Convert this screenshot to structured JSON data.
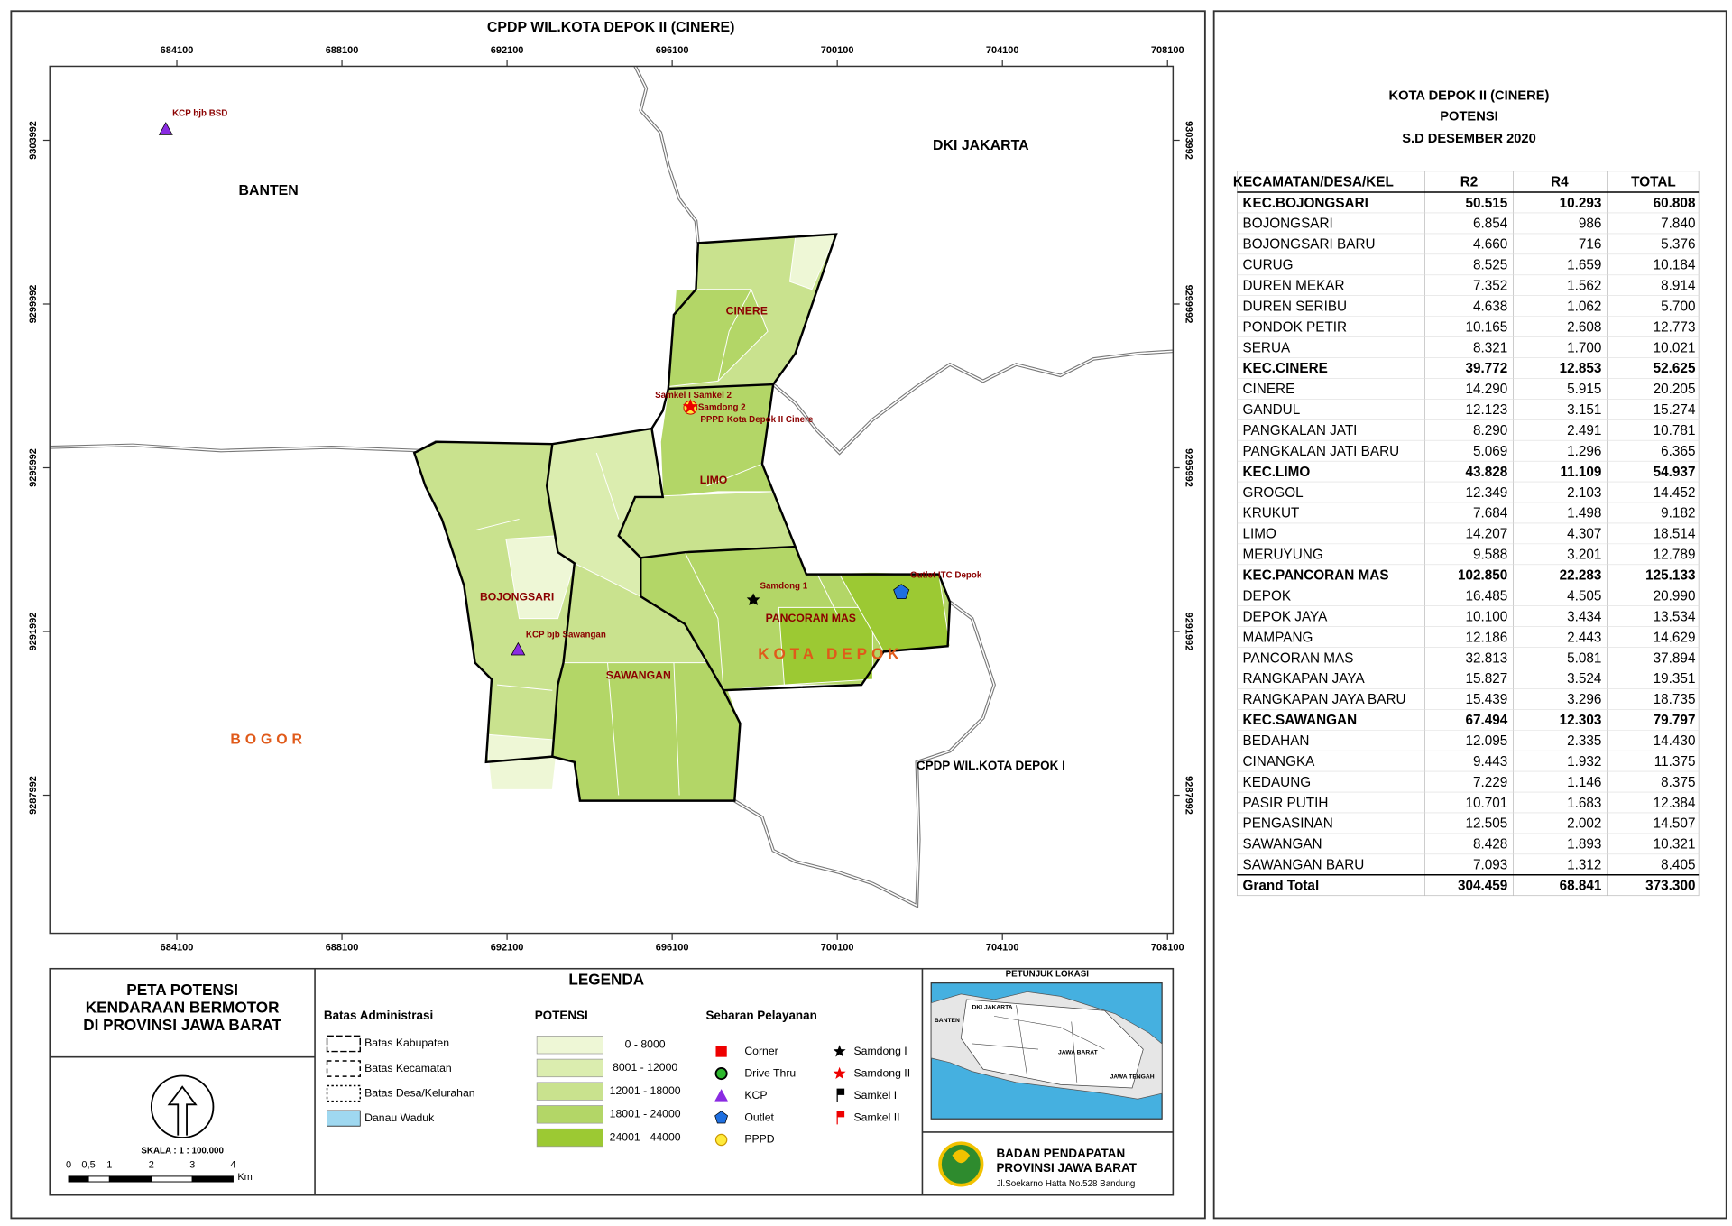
{
  "map": {
    "title": "CPDP WIL.KOTA DEPOK II (CINERE)",
    "x_ticks": [
      684100,
      688100,
      692100,
      696100,
      700100,
      704100,
      708100
    ],
    "y_ticks": [
      9303992,
      9299992,
      9295992,
      9291992,
      9287992
    ],
    "regions": [
      "BANTEN",
      "DKI JAKARTA",
      "BOGOR",
      "CPDP WIL.KOTA DEPOK I",
      "KOTA DEPOK"
    ],
    "districts": [
      "CINERE",
      "LIMO",
      "BOJONGSARI",
      "SAWANGAN",
      "PANCORAN MAS"
    ],
    "services": [
      "KCP bjb BSD",
      "KCP bjb Sawangan",
      "Outlet ITC Depok",
      "Samdong 1",
      "Samkel I Samkel 2",
      "Samdong 2",
      "PPPD Kota Depok II Cinere"
    ]
  },
  "map_title": [
    "PETA POTENSI",
    "KENDARAAN BERMOTOR",
    "DI PROVINSI JAWA BARAT"
  ],
  "scale": {
    "label": "SKALA  :  1  : 100.000",
    "ticks": [
      "0",
      "0,5",
      "1",
      "2",
      "3",
      "4"
    ],
    "unit": "Km"
  },
  "legend": {
    "title": "LEGENDA",
    "boundaries": {
      "title": "Batas Administrasi",
      "items": [
        "Batas Kabupaten",
        "Batas Kecamatan",
        "Batas Desa/Kelurahan",
        "Danau Waduk"
      ]
    },
    "potential": {
      "title": "POTENSI",
      "items": [
        "0 - 8000",
        "8001 - 12000",
        "12001 - 18000",
        "18001 - 24000",
        "24001 - 44000"
      ],
      "colors": [
        "#eef7d6",
        "#dbedaf",
        "#c9e28e",
        "#b3d667",
        "#9cc933"
      ]
    },
    "services": {
      "title": "Sebaran Pelayanan",
      "items": [
        "Corner",
        "Drive Thru",
        "KCP",
        "Outlet",
        "PPPD",
        "Samdong I",
        "Samdong II",
        "Samkel I",
        "Samkel II"
      ]
    }
  },
  "inset": {
    "title": "PETUNJUK LOKASI",
    "labels": [
      "DKI JAKARTA",
      "BANTEN",
      "JAWA BARAT",
      "JAWA TENGAH"
    ]
  },
  "agency": {
    "lines": [
      "BADAN PENDAPATAN",
      "PROVINSI JAWA BARAT"
    ],
    "address": "Jl.Soekarno Hatta No.528 Bandung"
  },
  "table": {
    "title": [
      "KOTA DEPOK II (CINERE)",
      "POTENSI",
      "S.D DESEMBER 2020"
    ],
    "header": [
      "KECAMATAN/DESA/KEL",
      "R2",
      "R4",
      "TOTAL"
    ],
    "groups": [
      {
        "row": [
          "KEC.BOJONGSARI",
          "50.515",
          "10.293",
          "60.808"
        ],
        "items": [
          [
            "BOJONGSARI",
            "6.854",
            "986",
            "7.840"
          ],
          [
            "BOJONGSARI BARU",
            "4.660",
            "716",
            "5.376"
          ],
          [
            "CURUG",
            "8.525",
            "1.659",
            "10.184"
          ],
          [
            "DUREN MEKAR",
            "7.352",
            "1.562",
            "8.914"
          ],
          [
            "DUREN SERIBU",
            "4.638",
            "1.062",
            "5.700"
          ],
          [
            "PONDOK PETIR",
            "10.165",
            "2.608",
            "12.773"
          ],
          [
            "SERUA",
            "8.321",
            "1.700",
            "10.021"
          ]
        ]
      },
      {
        "row": [
          "KEC.CINERE",
          "39.772",
          "12.853",
          "52.625"
        ],
        "items": [
          [
            "CINERE",
            "14.290",
            "5.915",
            "20.205"
          ],
          [
            "GANDUL",
            "12.123",
            "3.151",
            "15.274"
          ],
          [
            "PANGKALAN JATI",
            "8.290",
            "2.491",
            "10.781"
          ],
          [
            "PANGKALAN JATI BARU",
            "5.069",
            "1.296",
            "6.365"
          ]
        ]
      },
      {
        "row": [
          "KEC.LIMO",
          "43.828",
          "11.109",
          "54.937"
        ],
        "items": [
          [
            "GROGOL",
            "12.349",
            "2.103",
            "14.452"
          ],
          [
            "KRUKUT",
            "7.684",
            "1.498",
            "9.182"
          ],
          [
            "LIMO",
            "14.207",
            "4.307",
            "18.514"
          ],
          [
            "MERUYUNG",
            "9.588",
            "3.201",
            "12.789"
          ]
        ]
      },
      {
        "row": [
          "KEC.PANCORAN MAS",
          "102.850",
          "22.283",
          "125.133"
        ],
        "items": [
          [
            "DEPOK",
            "16.485",
            "4.505",
            "20.990"
          ],
          [
            "DEPOK JAYA",
            "10.100",
            "3.434",
            "13.534"
          ],
          [
            "MAMPANG",
            "12.186",
            "2.443",
            "14.629"
          ],
          [
            "PANCORAN MAS",
            "32.813",
            "5.081",
            "37.894"
          ],
          [
            "RANGKAPAN JAYA",
            "15.827",
            "3.524",
            "19.351"
          ],
          [
            "RANGKAPAN JAYA BARU",
            "15.439",
            "3.296",
            "18.735"
          ]
        ]
      },
      {
        "row": [
          "KEC.SAWANGAN",
          "67.494",
          "12.303",
          "79.797"
        ],
        "items": [
          [
            "BEDAHAN",
            "12.095",
            "2.335",
            "14.430"
          ],
          [
            "CINANGKA",
            "9.443",
            "1.932",
            "11.375"
          ],
          [
            "KEDAUNG",
            "7.229",
            "1.146",
            "8.375"
          ],
          [
            "PASIR PUTIH",
            "10.701",
            "1.683",
            "12.384"
          ],
          [
            "PENGASINAN",
            "12.505",
            "2.002",
            "14.507"
          ],
          [
            "SAWANGAN",
            "8.428",
            "1.893",
            "10.321"
          ],
          [
            "SAWANGAN BARU",
            "7.093",
            "1.312",
            "8.405"
          ]
        ]
      }
    ],
    "grand_total": [
      "Grand Total",
      "304.459",
      "68.841",
      "373.300"
    ]
  }
}
